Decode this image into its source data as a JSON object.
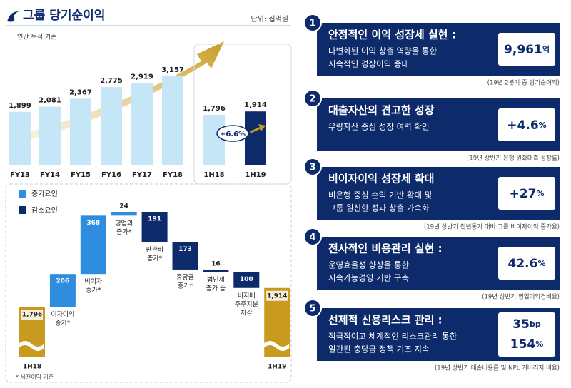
{
  "header": {
    "title": "그룹 당기순이익",
    "unit": "단위: 십억원",
    "note": "연간 누적 기준"
  },
  "chart_data": [
    {
      "type": "bar",
      "categories": [
        "FY13",
        "FY14",
        "FY15",
        "FY16",
        "FY17",
        "FY18"
      ],
      "values": [
        1899,
        2081,
        2367,
        2775,
        2919,
        3157
      ],
      "value_labels": [
        "1,899",
        "2,081",
        "2,367",
        "2,775",
        "2,919",
        "3,157"
      ],
      "color": "#c5e6f7"
    },
    {
      "type": "bar",
      "categories": [
        "1H18",
        "1H19"
      ],
      "values": [
        1796,
        1914
      ],
      "value_labels": [
        "1,796",
        "1,914"
      ],
      "colors": [
        "#c5e6f7",
        "#0d2b6b"
      ],
      "annotation": "+6.6%"
    },
    {
      "type": "waterfall",
      "categories": [
        [
          "1H18"
        ],
        [
          "이자이익",
          "증가*"
        ],
        [
          "비이자",
          "증가*"
        ],
        [
          "영업외",
          "증가*"
        ],
        [
          "판관비",
          "증가*"
        ],
        [
          "충당금",
          "증가*"
        ],
        [
          "법인세",
          "증가 등"
        ],
        [
          "비지배",
          "주주지분",
          "차감"
        ],
        [
          "1H19"
        ]
      ],
      "series": [
        {
          "name": "증가요인",
          "color": "#2f8de0",
          "values": [
            null,
            206,
            368,
            24,
            null,
            null,
            null,
            null,
            null
          ]
        },
        {
          "name": "감소요인",
          "color": "#0d2b6b",
          "values": [
            null,
            null,
            null,
            null,
            191,
            173,
            16,
            100,
            null
          ]
        }
      ],
      "totals": {
        "color": "#c89b20",
        "values": [
          1796,
          null,
          null,
          null,
          null,
          null,
          null,
          null,
          1914
        ],
        "value_labels": [
          "1,796",
          null,
          null,
          null,
          null,
          null,
          null,
          null,
          "1,914"
        ]
      },
      "note": "* 세전이익 기준"
    }
  ],
  "points": [
    {
      "num": "1",
      "title": "안정적인 이익 성장세 실현 :",
      "desc": [
        "다변화된 이익 창출 역량을 통한",
        "지속적인 경상이익 증대"
      ],
      "figures": [
        {
          "value": "9,961",
          "unit": "억"
        }
      ],
      "note": "(19년 2분기 중 당기순이익)"
    },
    {
      "num": "2",
      "title": "대출자산의 견고한 성장",
      "desc": [
        "우량자산 중심 성장 여력 확인"
      ],
      "figures": [
        {
          "value": "+4.6",
          "unit": "%"
        }
      ],
      "note": "(19년 상반기 은행 원화대출 성장률)"
    },
    {
      "num": "3",
      "title": "비이자이익 성장세 확대",
      "desc": [
        "비은행 중심 손익 기반 확대 및",
        "그룹 원신한 성과 창출 가속화"
      ],
      "figures": [
        {
          "value": "+27",
          "unit": "%"
        }
      ],
      "note": "(19년 상반기 전년동기 대비 그룹 비이자이익 증가율)"
    },
    {
      "num": "4",
      "title": "전사적인 비용관리 실현 :",
      "desc": [
        "운영효율성 향상을 통한",
        "지속가능경영 기반 구축"
      ],
      "figures": [
        {
          "value": "42.6",
          "unit": "%"
        }
      ],
      "note": "(19년 상반기 영업이익경비율)"
    },
    {
      "num": "5",
      "title": "선제적 신용리스크 관리 :",
      "desc": [
        "적극적이고 체계적인 리스크관리 통한",
        "일관된 충당금 정책 기조 지속"
      ],
      "figures": [
        {
          "value": "35",
          "unit": "bp"
        },
        {
          "value": "154",
          "unit": "%"
        }
      ],
      "note": "(19년 상반기 대손비용률 및 NPL 커버리지 비율)"
    }
  ]
}
